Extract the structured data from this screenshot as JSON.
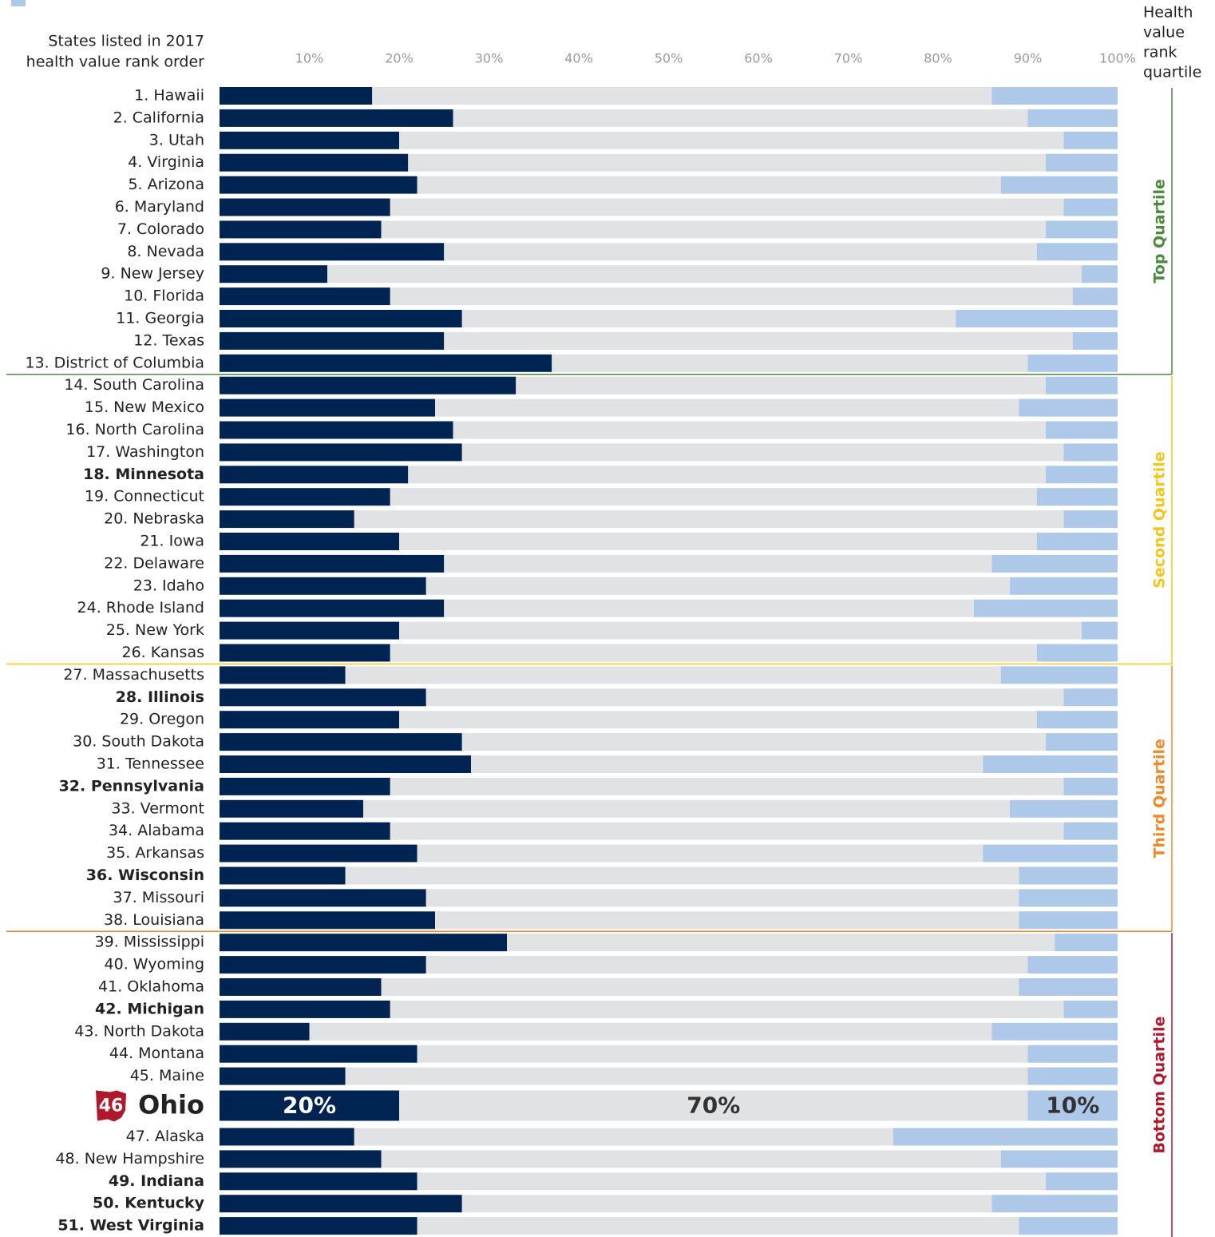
{
  "chart_data": {
    "type": "stacked-bar-horizontal",
    "header_left": [
      "States listed in 2017",
      "health value rank order"
    ],
    "header_right": [
      "Health",
      "value",
      "rank",
      "quartile"
    ],
    "categories": [
      "1. Hawaii",
      "2. California",
      "3. Utah",
      "4. Virginia",
      "5. Arizona",
      "6. Maryland",
      "7. Colorado",
      "8. Nevada",
      "9. New Jersey",
      "10. Florida",
      "11. Georgia",
      "12. Texas",
      "13. District of Columbia",
      "14. South Carolina",
      "15. New Mexico",
      "16. North Carolina",
      "17. Washington",
      "18. Minnesota",
      "19. Connecticut",
      "20. Nebraska",
      "21. Iowa",
      "22. Delaware",
      "23. Idaho",
      "24. Rhode Island",
      "25. New York",
      "26. Kansas",
      "27. Massachusetts",
      "28. Illinois",
      "29. Oregon",
      "30. South Dakota",
      "31. Tennessee",
      "32. Pennsylvania",
      "33. Vermont",
      "34. Alabama",
      "35. Arkansas",
      "36. Wisconsin",
      "37. Missouri",
      "38. Louisiana",
      "39. Mississippi",
      "40. Wyoming",
      "41. Oklahoma",
      "42. Michigan",
      "43. North Dakota",
      "44. Montana",
      "45. Maine",
      "Ohio",
      "47. Alaska",
      "48. New Hampshire",
      "49. Indiana",
      "50. Kentucky",
      "51. West Virginia"
    ],
    "bold": [
      17,
      27,
      31,
      35,
      41,
      48,
      49,
      50
    ],
    "highlight": 45,
    "highlight_badge": "46",
    "series": [
      {
        "color": "#002451",
        "values": [
          17,
          26,
          20,
          21,
          22,
          19,
          18,
          25,
          12,
          19,
          27,
          25,
          37,
          33,
          24,
          26,
          27,
          21,
          19,
          15,
          20,
          25,
          23,
          25,
          20,
          19,
          14,
          23,
          20,
          27,
          28,
          19,
          16,
          19,
          22,
          14,
          23,
          24,
          32,
          23,
          18,
          19,
          10,
          22,
          14,
          20,
          15,
          18,
          22,
          27,
          22
        ],
        "value_labels": [
          null,
          null,
          null,
          null,
          null,
          null,
          null,
          null,
          null,
          null,
          null,
          null,
          null,
          null,
          null,
          null,
          null,
          null,
          null,
          null,
          null,
          null,
          null,
          null,
          null,
          null,
          null,
          null,
          null,
          null,
          null,
          null,
          null,
          null,
          null,
          null,
          null,
          null,
          null,
          null,
          null,
          null,
          null,
          null,
          null,
          "20%",
          null,
          null,
          null,
          null,
          null
        ]
      },
      {
        "color": "#e1e2e3",
        "values": [
          69,
          64,
          74,
          71,
          65,
          75,
          74,
          66,
          84,
          76,
          55,
          70,
          53,
          59,
          65,
          66,
          67,
          71,
          72,
          79,
          71,
          61,
          65,
          59,
          76,
          72,
          73,
          71,
          71,
          65,
          57,
          75,
          72,
          75,
          63,
          75,
          66,
          65,
          61,
          67,
          71,
          75,
          76,
          68,
          76,
          70,
          60,
          69,
          70,
          59,
          67
        ],
        "value_labels": [
          null,
          null,
          null,
          null,
          null,
          null,
          null,
          null,
          null,
          null,
          null,
          null,
          null,
          null,
          null,
          null,
          null,
          null,
          null,
          null,
          null,
          null,
          null,
          null,
          null,
          null,
          null,
          null,
          null,
          null,
          null,
          null,
          null,
          null,
          null,
          null,
          null,
          null,
          null,
          null,
          null,
          null,
          null,
          null,
          null,
          "70%",
          null,
          null,
          null,
          null,
          null
        ]
      },
      {
        "color": "#adc8e8",
        "values": [
          14,
          10,
          6,
          8,
          13,
          6,
          8,
          9,
          4,
          5,
          18,
          5,
          10,
          8,
          11,
          8,
          6,
          8,
          9,
          6,
          9,
          14,
          12,
          16,
          4,
          9,
          13,
          6,
          9,
          8,
          15,
          6,
          12,
          6,
          15,
          11,
          11,
          11,
          7,
          10,
          11,
          6,
          14,
          10,
          10,
          10,
          25,
          13,
          8,
          14,
          11
        ],
        "value_labels": [
          null,
          null,
          null,
          null,
          null,
          null,
          null,
          null,
          null,
          null,
          null,
          null,
          null,
          null,
          null,
          null,
          null,
          null,
          null,
          null,
          null,
          null,
          null,
          null,
          null,
          null,
          null,
          null,
          null,
          null,
          null,
          null,
          null,
          null,
          null,
          null,
          null,
          null,
          null,
          null,
          null,
          null,
          null,
          null,
          null,
          "10%",
          null,
          null,
          null,
          null,
          null
        ]
      }
    ],
    "xlim": [
      0,
      100
    ],
    "xticks": [
      {
        "value": 10,
        "label": "10%"
      },
      {
        "value": 20,
        "label": "20%"
      },
      {
        "value": 30,
        "label": "30%"
      },
      {
        "value": 40,
        "label": "40%"
      },
      {
        "value": 50,
        "label": "50%"
      },
      {
        "value": 60,
        "label": "60%"
      },
      {
        "value": 70,
        "label": "70%"
      },
      {
        "value": 80,
        "label": "80%"
      },
      {
        "value": 90,
        "label": "90%"
      },
      {
        "value": 100,
        "label": "100%"
      }
    ],
    "quartiles": [
      {
        "label": "Top Quartile",
        "color": "#4a8a3c",
        "first": 0,
        "last": 12
      },
      {
        "label": "Second Quartile",
        "color": "#f5c518",
        "first": 13,
        "last": 25
      },
      {
        "label": "Third Quartile",
        "color": "#f0882a",
        "first": 26,
        "last": 37
      },
      {
        "label": "Bottom Quartile",
        "color": "#b0182b",
        "first": 38,
        "last": 50
      }
    ]
  }
}
